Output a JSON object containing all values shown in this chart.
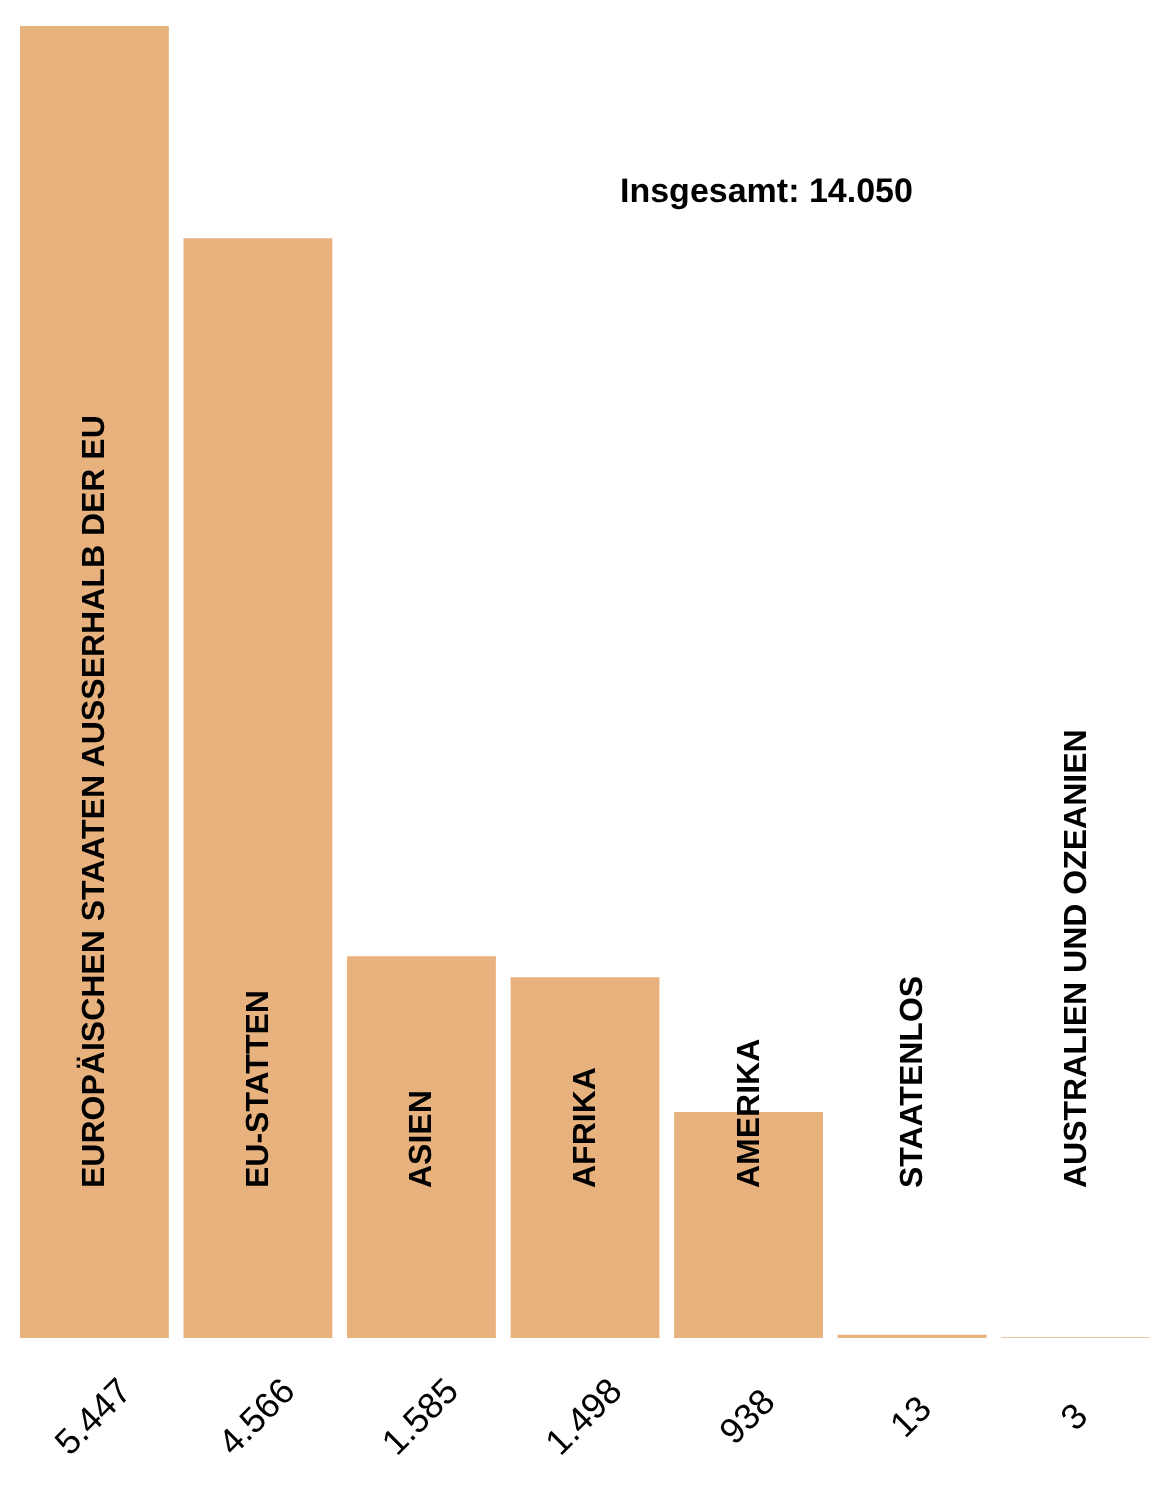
{
  "chart_data": {
    "type": "bar",
    "categories": [
      "EUROPÄISCHEN STAATEN AUSSERHALB DER EU",
      "EU-STATTEN",
      "ASIEN",
      "AFRIKA",
      "AMERIKA",
      "STAATENLOS",
      "AUSTRALIEN UND OZEANIEN"
    ],
    "values": [
      5447,
      4566,
      1585,
      1498,
      938,
      13,
      3
    ],
    "value_labels": [
      "5.447",
      "4.566",
      "1.585",
      "1.498",
      "938",
      "13",
      "3"
    ],
    "color": "#e8b27e",
    "ylim": [
      0,
      5447
    ],
    "annotations": [
      "Insgesamt: 14.050"
    ]
  }
}
